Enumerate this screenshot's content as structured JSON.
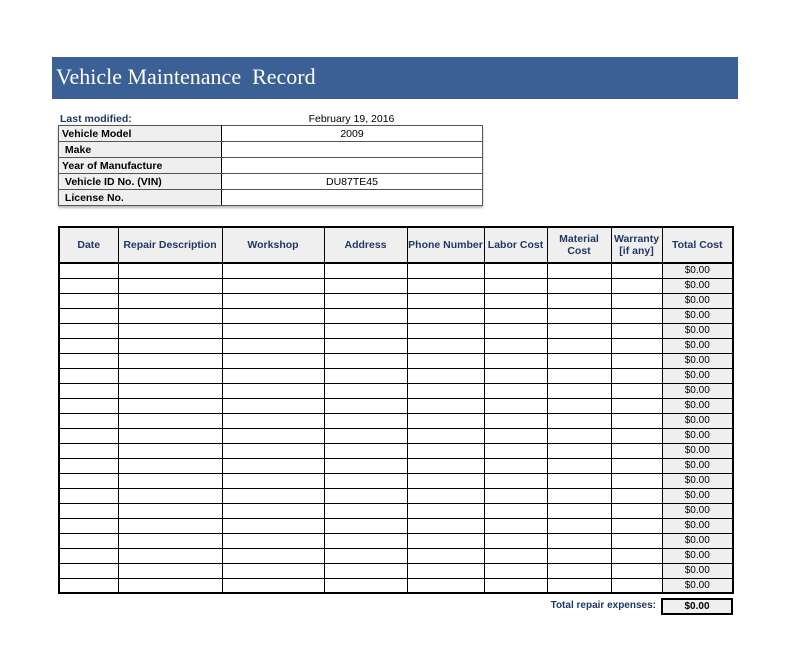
{
  "title": "Vehicle Maintenance  Record",
  "last_modified": {
    "label": "Last modified:",
    "value": "February 19, 2016"
  },
  "info": [
    {
      "label": "Vehicle Model",
      "value": "2009"
    },
    {
      "label": " Make",
      "value": ""
    },
    {
      "label": "Year of Manufacture",
      "value": ""
    },
    {
      "label": " Vehicle ID No. (VIN)",
      "value": "DU87TE45"
    },
    {
      "label": " License No.",
      "value": ""
    }
  ],
  "columns": [
    "Date",
    "Repair Description",
    "Workshop",
    "Address",
    "Phone Number",
    "Labor Cost",
    "Material Cost",
    "Warranty [if any]",
    "Total Cost"
  ],
  "rows": [
    "$0.00",
    "$0.00",
    "$0.00",
    "$0.00",
    "$0.00",
    "$0.00",
    "$0.00",
    "$0.00",
    "$0.00",
    "$0.00",
    "$0.00",
    "$0.00",
    "$0.00",
    "$0.00",
    "$0.00",
    "$0.00",
    "$0.00",
    "$0.00",
    "$0.00",
    "$0.00",
    "$0.00",
    "$0.00"
  ],
  "total": {
    "label": "Total repair expenses:",
    "value": "$0.00"
  },
  "colors": {
    "banner": "#3a6096",
    "label_text": "#1f3864"
  }
}
